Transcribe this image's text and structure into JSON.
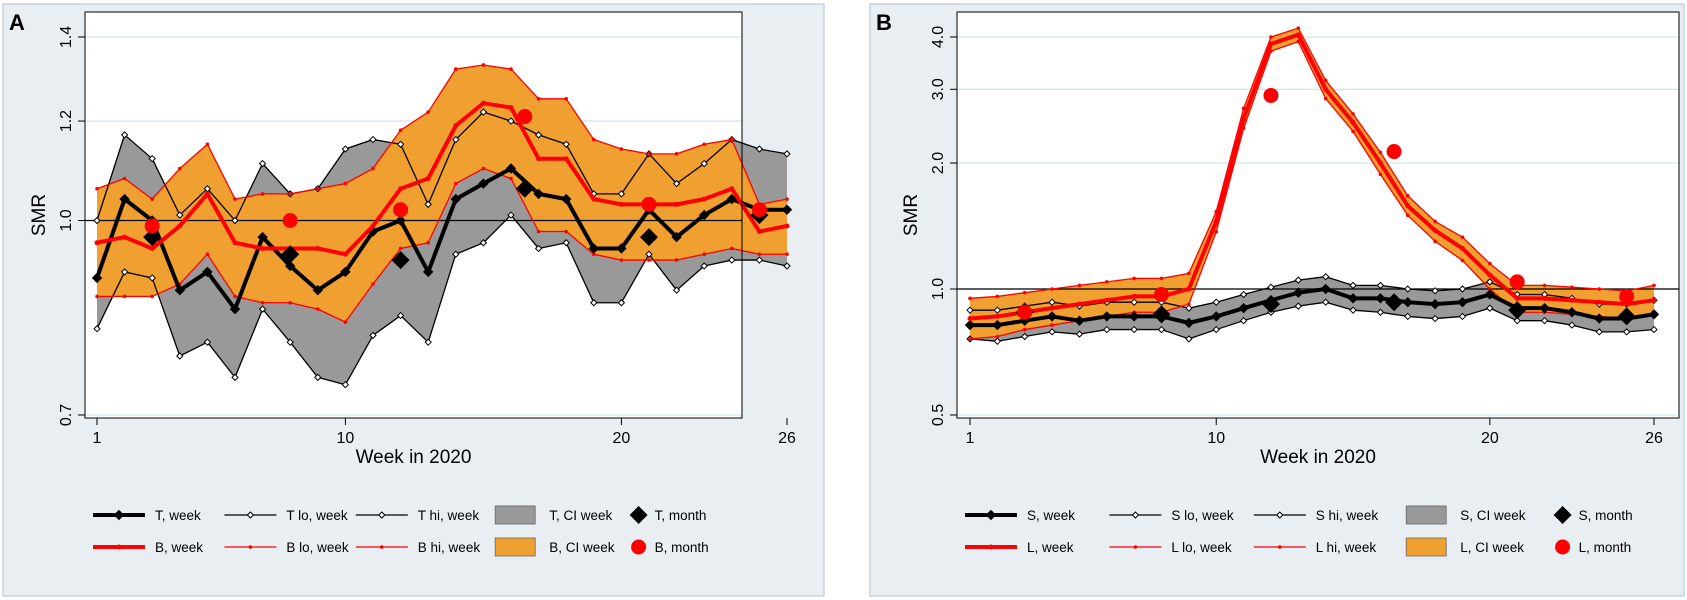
{
  "chart_data": [
    {
      "panel": "A",
      "type": "line",
      "xlabel": "Week in 2020",
      "ylabel": "SMR",
      "y_scale": "log",
      "xlim": [
        1,
        26
      ],
      "ylim": [
        0.7,
        1.4
      ],
      "x_ticks": [
        1,
        10,
        20,
        26
      ],
      "y_ticks": [
        {
          "value": 0.7,
          "label": "0.7"
        },
        {
          "value": 1.0,
          "label": "1.0"
        },
        {
          "value": 1.2,
          "label": "1.2"
        },
        {
          "value": 1.4,
          "label": "1.4"
        }
      ],
      "reference_line": 1.0,
      "x": [
        1,
        2,
        3,
        4,
        5,
        6,
        7,
        8,
        9,
        10,
        11,
        12,
        13,
        14,
        15,
        16,
        17,
        18,
        19,
        20,
        21,
        22,
        23,
        24,
        25,
        26
      ],
      "series": [
        {
          "key": "T_week",
          "name": "T, week",
          "color": "#000000",
          "values": [
            0.9,
            1.04,
            1.0,
            0.88,
            0.91,
            0.85,
            0.97,
            0.92,
            0.88,
            0.91,
            0.98,
            1.0,
            0.91,
            1.04,
            1.07,
            1.1,
            1.05,
            1.04,
            0.95,
            0.95,
            1.02,
            0.97,
            1.01,
            1.04,
            1.02,
            1.02
          ]
        },
        {
          "key": "T_lo",
          "name": "T lo, week",
          "color": "#000000",
          "values": [
            0.82,
            0.91,
            0.9,
            0.78,
            0.8,
            0.75,
            0.85,
            0.8,
            0.75,
            0.74,
            0.81,
            0.84,
            0.8,
            0.94,
            0.96,
            1.01,
            0.95,
            0.96,
            0.86,
            0.86,
            0.94,
            0.88,
            0.92,
            0.93,
            0.93,
            0.92
          ]
        },
        {
          "key": "T_hi",
          "name": "T hi, week",
          "color": "#000000",
          "values": [
            1.0,
            1.17,
            1.12,
            1.01,
            1.06,
            1.0,
            1.11,
            1.05,
            1.06,
            1.14,
            1.16,
            1.15,
            1.03,
            1.16,
            1.22,
            1.2,
            1.17,
            1.15,
            1.05,
            1.05,
            1.13,
            1.07,
            1.11,
            1.16,
            1.14,
            1.13
          ]
        },
        {
          "key": "B_week",
          "name": "B, week",
          "color": "#ff0000",
          "values": [
            0.96,
            0.97,
            0.95,
            0.99,
            1.05,
            0.96,
            0.95,
            0.95,
            0.95,
            0.94,
            0.99,
            1.06,
            1.08,
            1.19,
            1.24,
            1.23,
            1.12,
            1.12,
            1.04,
            1.03,
            1.03,
            1.03,
            1.04,
            1.06,
            0.98,
            0.99
          ]
        },
        {
          "key": "B_lo",
          "name": "B lo, week",
          "color": "#ff0000",
          "values": [
            0.87,
            0.87,
            0.87,
            0.89,
            0.94,
            0.87,
            0.86,
            0.86,
            0.85,
            0.83,
            0.89,
            0.95,
            0.96,
            1.07,
            1.1,
            1.08,
            0.98,
            0.98,
            0.94,
            0.93,
            0.93,
            0.93,
            0.94,
            0.95,
            0.94,
            0.94
          ]
        },
        {
          "key": "B_hi",
          "name": "B hi, week",
          "color": "#ff0000",
          "values": [
            1.06,
            1.08,
            1.04,
            1.1,
            1.15,
            1.04,
            1.05,
            1.05,
            1.06,
            1.07,
            1.1,
            1.18,
            1.22,
            1.32,
            1.33,
            1.32,
            1.25,
            1.25,
            1.16,
            1.14,
            1.13,
            1.13,
            1.15,
            1.16,
            1.03,
            1.04
          ]
        }
      ],
      "bands": [
        {
          "key": "T_CI",
          "name": "T, CI week",
          "color": "#999999",
          "lower": "T_lo",
          "upper": "T_hi"
        },
        {
          "key": "B_CI",
          "name": "B, CI week",
          "color": "#f0a030",
          "lower": "B_lo",
          "upper": "B_hi"
        }
      ],
      "month_points": [
        {
          "key": "T_month",
          "name": "T, month",
          "color": "#000000",
          "marker": "diamond",
          "points": [
            [
              3,
              0.97
            ],
            [
              8,
              0.94
            ],
            [
              12,
              0.93
            ],
            [
              16.5,
              1.06
            ],
            [
              21,
              0.97
            ],
            [
              25,
              1.01
            ]
          ]
        },
        {
          "key": "B_month",
          "name": "B, month",
          "color": "#ff0000",
          "marker": "circle",
          "points": [
            [
              3,
              0.99
            ],
            [
              8,
              1.0
            ],
            [
              12,
              1.02
            ],
            [
              16.5,
              1.21
            ],
            [
              21,
              1.03
            ],
            [
              25,
              1.02
            ]
          ]
        }
      ],
      "legend": [
        [
          "T, week",
          "T lo, week",
          "T hi, week",
          "T, CI week",
          "T, month"
        ],
        [
          "B, week",
          "B lo, week",
          "B hi, week",
          "B, CI week",
          "B, month"
        ]
      ]
    },
    {
      "panel": "B",
      "type": "line",
      "xlabel": "Week in 2020",
      "ylabel": "SMR",
      "y_scale": "log",
      "xlim": [
        1,
        26
      ],
      "ylim": [
        0.5,
        4.0
      ],
      "x_ticks": [
        1,
        10,
        20,
        26
      ],
      "y_ticks": [
        {
          "value": 0.5,
          "label": "0.5"
        },
        {
          "value": 1.0,
          "label": "1.0"
        },
        {
          "value": 2.0,
          "label": "2.0"
        },
        {
          "value": 3.0,
          "label": "3.0"
        },
        {
          "value": 4.0,
          "label": "4.0"
        }
      ],
      "reference_line": 1.0,
      "x": [
        1,
        2,
        3,
        4,
        5,
        6,
        7,
        8,
        9,
        10,
        11,
        12,
        13,
        14,
        15,
        16,
        17,
        18,
        19,
        20,
        21,
        22,
        23,
        24,
        25,
        26
      ],
      "series": [
        {
          "key": "S_week",
          "name": "S, week",
          "color": "#000000",
          "values": [
            0.82,
            0.82,
            0.84,
            0.86,
            0.84,
            0.86,
            0.86,
            0.86,
            0.83,
            0.86,
            0.9,
            0.94,
            0.98,
            1.0,
            0.95,
            0.95,
            0.93,
            0.92,
            0.93,
            0.97,
            0.9,
            0.9,
            0.88,
            0.85,
            0.85,
            0.87
          ]
        },
        {
          "key": "S_lo",
          "name": "S lo, week",
          "color": "#000000",
          "values": [
            0.76,
            0.75,
            0.77,
            0.79,
            0.78,
            0.8,
            0.8,
            0.8,
            0.76,
            0.8,
            0.84,
            0.88,
            0.91,
            0.93,
            0.89,
            0.88,
            0.86,
            0.85,
            0.86,
            0.9,
            0.84,
            0.84,
            0.82,
            0.79,
            0.79,
            0.8
          ]
        },
        {
          "key": "S_hi",
          "name": "S hi, week",
          "color": "#000000",
          "values": [
            0.89,
            0.89,
            0.91,
            0.93,
            0.91,
            0.93,
            0.93,
            0.93,
            0.9,
            0.93,
            0.97,
            1.01,
            1.05,
            1.07,
            1.02,
            1.02,
            1.0,
            0.99,
            1.0,
            1.04,
            0.97,
            0.97,
            0.95,
            0.92,
            0.92,
            0.94
          ]
        },
        {
          "key": "L_week",
          "name": "L, week",
          "color": "#ff0000",
          "values": [
            0.85,
            0.86,
            0.88,
            0.9,
            0.92,
            0.94,
            0.96,
            0.96,
            1.0,
            1.45,
            2.55,
            3.85,
            4.05,
            3.0,
            2.5,
            2.0,
            1.58,
            1.38,
            1.25,
            1.08,
            0.95,
            0.95,
            0.94,
            0.93,
            0.92,
            0.94
          ]
        },
        {
          "key": "L_lo",
          "name": "L lo, week",
          "color": "#ff0000",
          "values": [
            0.76,
            0.77,
            0.8,
            0.82,
            0.84,
            0.86,
            0.88,
            0.88,
            0.92,
            1.37,
            2.42,
            3.7,
            3.9,
            2.85,
            2.38,
            1.88,
            1.5,
            1.3,
            1.17,
            1.0,
            0.88,
            0.88,
            0.87,
            0.86,
            0.85,
            0.87
          ]
        },
        {
          "key": "L_hi",
          "name": "L hi, week",
          "color": "#ff0000",
          "values": [
            0.95,
            0.96,
            0.98,
            1.0,
            1.02,
            1.04,
            1.06,
            1.06,
            1.09,
            1.53,
            2.7,
            4.0,
            4.2,
            3.15,
            2.62,
            2.12,
            1.67,
            1.45,
            1.33,
            1.15,
            1.02,
            1.02,
            1.01,
            1.0,
            0.99,
            1.02
          ]
        }
      ],
      "bands": [
        {
          "key": "S_CI",
          "name": "S, CI week",
          "color": "#999999",
          "lower": "S_lo",
          "upper": "S_hi"
        },
        {
          "key": "L_CI",
          "name": "L, CI week",
          "color": "#f0a030",
          "lower": "L_lo",
          "upper": "L_hi"
        }
      ],
      "month_points": [
        {
          "key": "S_month",
          "name": "S, month",
          "color": "#000000",
          "marker": "diamond",
          "points": [
            [
              3,
              0.88
            ],
            [
              8,
              0.87
            ],
            [
              12,
              0.92
            ],
            [
              16.5,
              0.93
            ],
            [
              21,
              0.89
            ],
            [
              25,
              0.86
            ]
          ]
        },
        {
          "key": "L_month",
          "name": "L, month",
          "color": "#ff0000",
          "marker": "circle",
          "points": [
            [
              3,
              0.88
            ],
            [
              8,
              0.97
            ],
            [
              12,
              2.9
            ],
            [
              16.5,
              2.13
            ],
            [
              21,
              1.04
            ],
            [
              25,
              0.96
            ]
          ]
        }
      ],
      "legend": [
        [
          "S, week",
          "S lo, week",
          "S hi, week",
          "S, CI week",
          "S, month"
        ],
        [
          "L, week",
          "L lo, week",
          "L hi, week",
          "L, CI week",
          "L, month"
        ]
      ]
    }
  ]
}
